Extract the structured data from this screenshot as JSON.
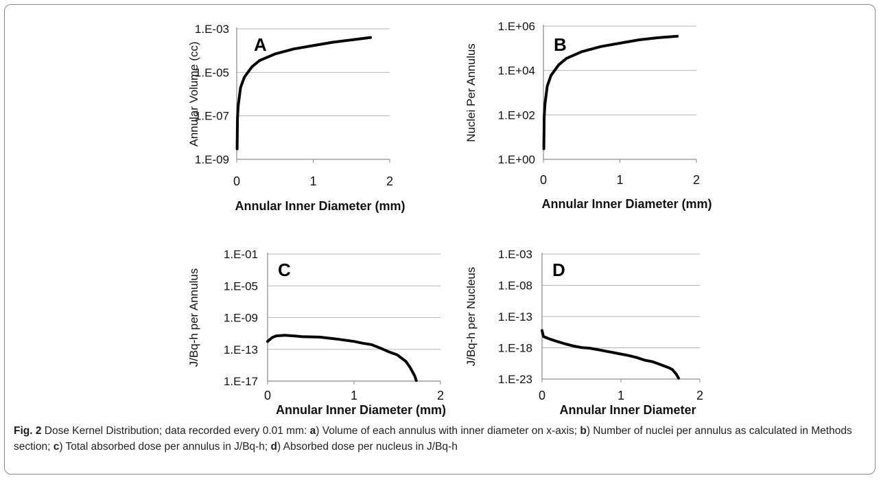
{
  "chart_data": [
    {
      "type": "line",
      "panel_letter": "A",
      "ylabel": "Annular Volume (cc)",
      "xlabel": "Annular Inner Diameter (mm)",
      "x_ticks": [
        "0",
        "1",
        "2"
      ],
      "y_ticks": [
        "1.E-09",
        "1.E-07",
        "1.E-05",
        "1.E-03"
      ],
      "y_scale": "log",
      "xlim": [
        0,
        2
      ],
      "ylim_exp": [
        -9,
        -3
      ],
      "series": [
        {
          "x": [
            0.005,
            0.01,
            0.02,
            0.05,
            0.1,
            0.2,
            0.3,
            0.5,
            0.75,
            1.0,
            1.25,
            1.5,
            1.75
          ],
          "y": [
            3e-09,
            8e-08,
            3e-07,
            2e-06,
            6e-06,
            1.8e-05,
            3.5e-05,
            7e-05,
            0.00012,
            0.00017,
            0.00024,
            0.00031,
            0.0004
          ]
        }
      ]
    },
    {
      "type": "line",
      "panel_letter": "B",
      "ylabel": "Nuclei Per Annulus",
      "xlabel": "Annular Inner Diameter (mm)",
      "x_ticks": [
        "0",
        "1",
        "2"
      ],
      "y_ticks": [
        "1.E+00",
        "1.E+02",
        "1.E+04",
        "1.E+06"
      ],
      "y_scale": "log",
      "xlim": [
        0,
        2
      ],
      "ylim_exp": [
        0,
        6
      ],
      "series": [
        {
          "x": [
            0.005,
            0.01,
            0.02,
            0.05,
            0.1,
            0.2,
            0.3,
            0.5,
            0.75,
            1.0,
            1.25,
            1.5,
            1.75
          ],
          "y": [
            3,
            80,
            300,
            2000,
            6000,
            18000,
            35000,
            70000,
            120000,
            170000,
            240000,
            300000,
            350000
          ]
        }
      ]
    },
    {
      "type": "line",
      "panel_letter": "C",
      "ylabel": "J/Bq-h per Annulus",
      "xlabel": "Annular Inner Diameter (mm)",
      "x_ticks": [
        "0",
        "1",
        "2"
      ],
      "y_ticks": [
        "1.E-17",
        "1.E-13",
        "1.E-09",
        "1.E-05",
        "1.E-01"
      ],
      "y_scale": "log",
      "xlim": [
        0,
        2
      ],
      "ylim_exp": [
        -17,
        -1
      ],
      "series": [
        {
          "x": [
            0.0,
            0.05,
            0.1,
            0.2,
            0.3,
            0.4,
            0.6,
            0.8,
            1.0,
            1.1,
            1.2,
            1.3,
            1.4,
            1.5,
            1.6,
            1.65,
            1.7,
            1.72
          ],
          "y": [
            1e-12,
            3e-12,
            5e-12,
            6e-12,
            5e-12,
            4e-12,
            3.5e-12,
            2e-12,
            1e-12,
            6e-13,
            4e-13,
            1.5e-13,
            5e-14,
            2e-14,
            3e-15,
            5e-16,
            5e-17,
            1.2e-17
          ]
        }
      ]
    },
    {
      "type": "line",
      "panel_letter": "D",
      "ylabel": "J/Bq-h per Nucleus",
      "xlabel": "Annular Inner Diameter",
      "x_ticks": [
        "0",
        "1",
        "2"
      ],
      "y_ticks": [
        "1.E-23",
        "1.E-18",
        "1.E-13",
        "1.E-08",
        "1.E-03"
      ],
      "y_scale": "log",
      "xlim": [
        0,
        2
      ],
      "ylim_exp": [
        -23,
        2
      ],
      "series": [
        {
          "x": [
            0.0,
            0.01,
            0.02,
            0.05,
            0.1,
            0.2,
            0.3,
            0.4,
            0.5,
            0.6,
            0.7,
            0.8,
            0.9,
            1.0,
            1.1,
            1.2,
            1.3,
            1.4,
            1.5,
            1.6,
            1.65,
            1.7,
            1.73
          ],
          "y": [
            5e-14,
            1e-14,
            3e-15,
            2e-15,
            1e-15,
            3e-16,
            1e-16,
            4e-17,
            2e-17,
            1.5e-17,
            8e-18,
            4e-18,
            2e-18,
            1e-18,
            5e-19,
            2e-19,
            6e-20,
            3e-20,
            8e-21,
            2e-21,
            8e-22,
            1e-22,
            1.5e-23
          ]
        }
      ]
    }
  ],
  "caption": {
    "lead": "Fig. 2",
    "parts": [
      {
        "t": " Dose Kernel Distribution; data recorded every 0.01 mm: ",
        "b": false
      },
      {
        "t": "a",
        "b": true
      },
      {
        "t": ") Volume of each annulus with inner diameter on x-axis; ",
        "b": false
      },
      {
        "t": "b",
        "b": true
      },
      {
        "t": ") Number of nuclei per annulus as calculated in Methods section; ",
        "b": false
      },
      {
        "t": "c",
        "b": true
      },
      {
        "t": ") Total absorbed dose per annulus in J/Bq-h; ",
        "b": false
      },
      {
        "t": "d",
        "b": true
      },
      {
        "t": ") Absorbed dose per nucleus in J/Bq-h",
        "b": false
      }
    ]
  }
}
